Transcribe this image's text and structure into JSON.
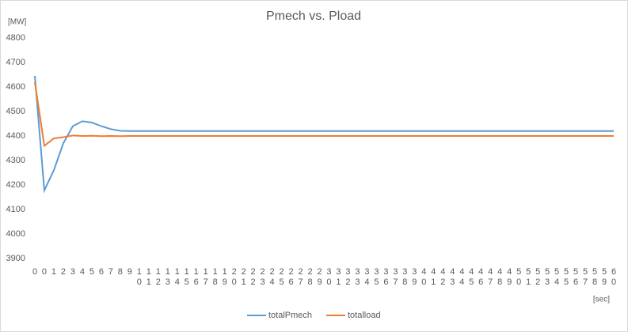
{
  "chart_data": {
    "type": "line",
    "title": "Pmech vs. Pload",
    "y_label": "[MW]",
    "x_label": "[sec]",
    "categories": [
      "0",
      "0",
      "1",
      "2",
      "3",
      "4",
      "5",
      "6",
      "7",
      "8",
      "9",
      "10",
      "11",
      "12",
      "13",
      "14",
      "15",
      "16",
      "17",
      "18",
      "19",
      "20",
      "21",
      "22",
      "23",
      "24",
      "25",
      "26",
      "27",
      "28",
      "29",
      "30",
      "31",
      "32",
      "33",
      "34",
      "35",
      "36",
      "37",
      "38",
      "39",
      "40",
      "41",
      "42",
      "43",
      "44",
      "45",
      "46",
      "47",
      "48",
      "49",
      "50",
      "51",
      "52",
      "53",
      "54",
      "55",
      "56",
      "57",
      "58",
      "59",
      "60"
    ],
    "series": [
      {
        "name": "totalPmech",
        "color": "#5b9bd5",
        "values": [
          4645,
          4178,
          4260,
          4370,
          4440,
          4460,
          4455,
          4440,
          4428,
          4421,
          4420,
          4420,
          4420,
          4420,
          4420,
          4420,
          4420,
          4420,
          4420,
          4420,
          4420,
          4420,
          4420,
          4420,
          4420,
          4420,
          4420,
          4420,
          4420,
          4420,
          4420,
          4420,
          4420,
          4420,
          4420,
          4420,
          4420,
          4420,
          4420,
          4420,
          4420,
          4420,
          4420,
          4420,
          4420,
          4420,
          4420,
          4420,
          4420,
          4420,
          4420,
          4420,
          4420,
          4420,
          4420,
          4420,
          4420,
          4420,
          4420,
          4420,
          4420,
          4420
        ]
      },
      {
        "name": "totalload",
        "color": "#ed7d31",
        "values": [
          4620,
          4360,
          4390,
          4395,
          4402,
          4400,
          4401,
          4399,
          4400,
          4399,
          4400,
          4400,
          4400,
          4400,
          4400,
          4400,
          4400,
          4400,
          4400,
          4400,
          4400,
          4400,
          4400,
          4400,
          4400,
          4400,
          4400,
          4400,
          4400,
          4400,
          4400,
          4400,
          4400,
          4400,
          4400,
          4400,
          4400,
          4400,
          4400,
          4400,
          4400,
          4400,
          4400,
          4400,
          4400,
          4400,
          4400,
          4400,
          4400,
          4400,
          4400,
          4400,
          4400,
          4400,
          4400,
          4400,
          4400,
          4400,
          4400,
          4400,
          4400,
          4400
        ]
      }
    ],
    "ylim": [
      3900,
      4800
    ],
    "yticks": [
      3900,
      4000,
      4100,
      4200,
      4300,
      4400,
      4500,
      4600,
      4700,
      4800
    ],
    "grid": false
  }
}
